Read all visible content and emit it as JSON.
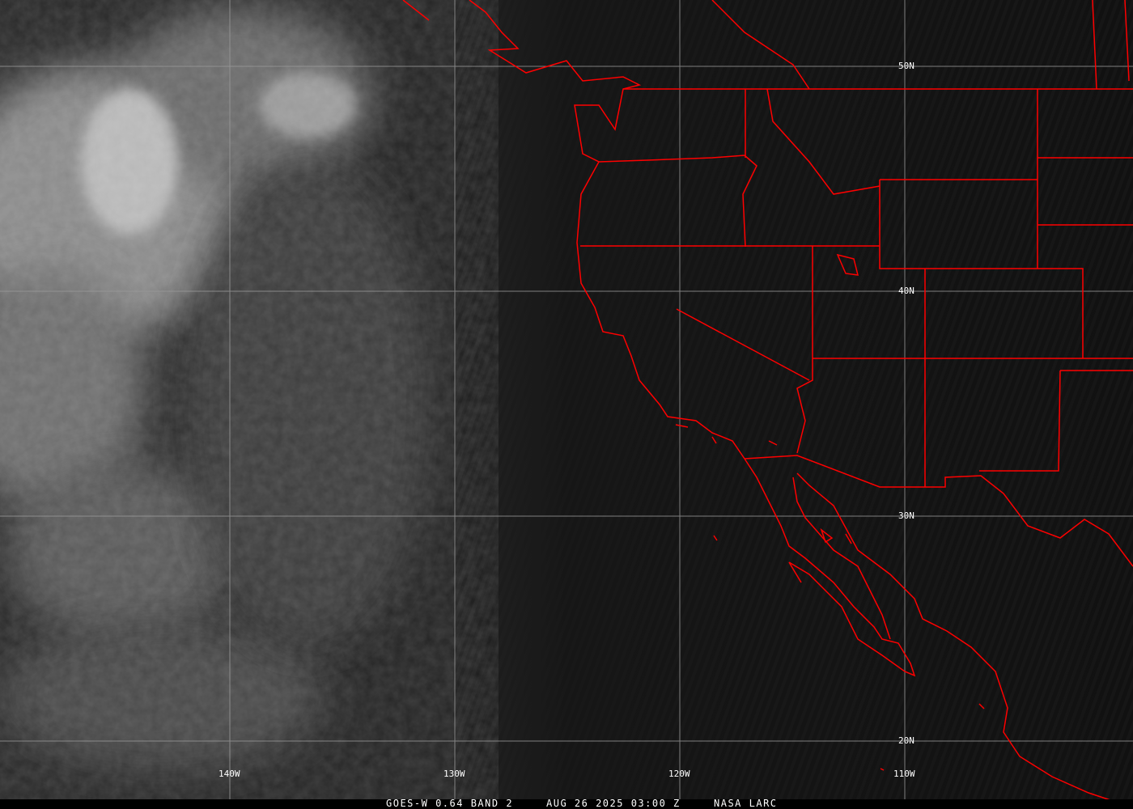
{
  "map": {
    "imagery": "visible satellite image",
    "colors": {
      "borders": "#ff0000",
      "grid": "#9a9a9a",
      "background": "#121212",
      "clouds": "#d0d0d0"
    },
    "lat_labels": [
      "50N",
      "40N",
      "30N",
      "20N"
    ],
    "lon_labels": [
      "140W",
      "130W",
      "120W",
      "110W"
    ]
  },
  "caption": {
    "satellite": "GOES-W 0.64 BAND 2",
    "datetime": "AUG 26 2025 03:00 Z",
    "source": "NASA LARC"
  }
}
